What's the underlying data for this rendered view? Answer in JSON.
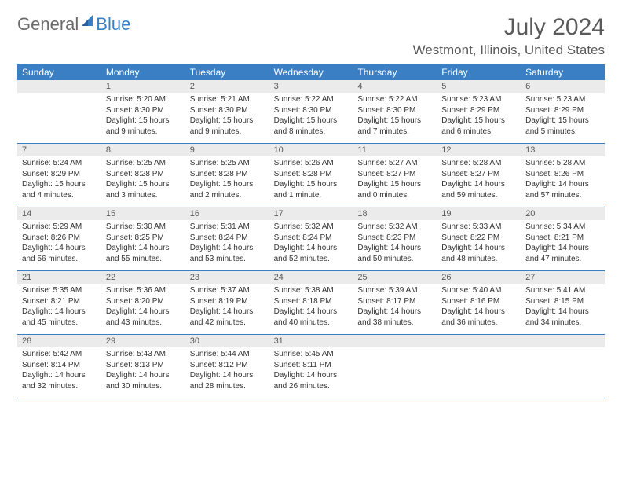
{
  "logo": {
    "text1": "General",
    "text2": "Blue"
  },
  "title": "July 2024",
  "location": "Westmont, Illinois, United States",
  "colors": {
    "header_bg": "#3a7fc4",
    "daynum_bg": "#ebebeb",
    "text_gray": "#5a5a5a",
    "body_text": "#333333"
  },
  "day_names": [
    "Sunday",
    "Monday",
    "Tuesday",
    "Wednesday",
    "Thursday",
    "Friday",
    "Saturday"
  ],
  "weeks": [
    [
      {
        "num": "",
        "sunrise": "",
        "sunset": "",
        "daylight1": "",
        "daylight2": ""
      },
      {
        "num": "1",
        "sunrise": "Sunrise: 5:20 AM",
        "sunset": "Sunset: 8:30 PM",
        "daylight1": "Daylight: 15 hours",
        "daylight2": "and 9 minutes."
      },
      {
        "num": "2",
        "sunrise": "Sunrise: 5:21 AM",
        "sunset": "Sunset: 8:30 PM",
        "daylight1": "Daylight: 15 hours",
        "daylight2": "and 9 minutes."
      },
      {
        "num": "3",
        "sunrise": "Sunrise: 5:22 AM",
        "sunset": "Sunset: 8:30 PM",
        "daylight1": "Daylight: 15 hours",
        "daylight2": "and 8 minutes."
      },
      {
        "num": "4",
        "sunrise": "Sunrise: 5:22 AM",
        "sunset": "Sunset: 8:30 PM",
        "daylight1": "Daylight: 15 hours",
        "daylight2": "and 7 minutes."
      },
      {
        "num": "5",
        "sunrise": "Sunrise: 5:23 AM",
        "sunset": "Sunset: 8:29 PM",
        "daylight1": "Daylight: 15 hours",
        "daylight2": "and 6 minutes."
      },
      {
        "num": "6",
        "sunrise": "Sunrise: 5:23 AM",
        "sunset": "Sunset: 8:29 PM",
        "daylight1": "Daylight: 15 hours",
        "daylight2": "and 5 minutes."
      }
    ],
    [
      {
        "num": "7",
        "sunrise": "Sunrise: 5:24 AM",
        "sunset": "Sunset: 8:29 PM",
        "daylight1": "Daylight: 15 hours",
        "daylight2": "and 4 minutes."
      },
      {
        "num": "8",
        "sunrise": "Sunrise: 5:25 AM",
        "sunset": "Sunset: 8:28 PM",
        "daylight1": "Daylight: 15 hours",
        "daylight2": "and 3 minutes."
      },
      {
        "num": "9",
        "sunrise": "Sunrise: 5:25 AM",
        "sunset": "Sunset: 8:28 PM",
        "daylight1": "Daylight: 15 hours",
        "daylight2": "and 2 minutes."
      },
      {
        "num": "10",
        "sunrise": "Sunrise: 5:26 AM",
        "sunset": "Sunset: 8:28 PM",
        "daylight1": "Daylight: 15 hours",
        "daylight2": "and 1 minute."
      },
      {
        "num": "11",
        "sunrise": "Sunrise: 5:27 AM",
        "sunset": "Sunset: 8:27 PM",
        "daylight1": "Daylight: 15 hours",
        "daylight2": "and 0 minutes."
      },
      {
        "num": "12",
        "sunrise": "Sunrise: 5:28 AM",
        "sunset": "Sunset: 8:27 PM",
        "daylight1": "Daylight: 14 hours",
        "daylight2": "and 59 minutes."
      },
      {
        "num": "13",
        "sunrise": "Sunrise: 5:28 AM",
        "sunset": "Sunset: 8:26 PM",
        "daylight1": "Daylight: 14 hours",
        "daylight2": "and 57 minutes."
      }
    ],
    [
      {
        "num": "14",
        "sunrise": "Sunrise: 5:29 AM",
        "sunset": "Sunset: 8:26 PM",
        "daylight1": "Daylight: 14 hours",
        "daylight2": "and 56 minutes."
      },
      {
        "num": "15",
        "sunrise": "Sunrise: 5:30 AM",
        "sunset": "Sunset: 8:25 PM",
        "daylight1": "Daylight: 14 hours",
        "daylight2": "and 55 minutes."
      },
      {
        "num": "16",
        "sunrise": "Sunrise: 5:31 AM",
        "sunset": "Sunset: 8:24 PM",
        "daylight1": "Daylight: 14 hours",
        "daylight2": "and 53 minutes."
      },
      {
        "num": "17",
        "sunrise": "Sunrise: 5:32 AM",
        "sunset": "Sunset: 8:24 PM",
        "daylight1": "Daylight: 14 hours",
        "daylight2": "and 52 minutes."
      },
      {
        "num": "18",
        "sunrise": "Sunrise: 5:32 AM",
        "sunset": "Sunset: 8:23 PM",
        "daylight1": "Daylight: 14 hours",
        "daylight2": "and 50 minutes."
      },
      {
        "num": "19",
        "sunrise": "Sunrise: 5:33 AM",
        "sunset": "Sunset: 8:22 PM",
        "daylight1": "Daylight: 14 hours",
        "daylight2": "and 48 minutes."
      },
      {
        "num": "20",
        "sunrise": "Sunrise: 5:34 AM",
        "sunset": "Sunset: 8:21 PM",
        "daylight1": "Daylight: 14 hours",
        "daylight2": "and 47 minutes."
      }
    ],
    [
      {
        "num": "21",
        "sunrise": "Sunrise: 5:35 AM",
        "sunset": "Sunset: 8:21 PM",
        "daylight1": "Daylight: 14 hours",
        "daylight2": "and 45 minutes."
      },
      {
        "num": "22",
        "sunrise": "Sunrise: 5:36 AM",
        "sunset": "Sunset: 8:20 PM",
        "daylight1": "Daylight: 14 hours",
        "daylight2": "and 43 minutes."
      },
      {
        "num": "23",
        "sunrise": "Sunrise: 5:37 AM",
        "sunset": "Sunset: 8:19 PM",
        "daylight1": "Daylight: 14 hours",
        "daylight2": "and 42 minutes."
      },
      {
        "num": "24",
        "sunrise": "Sunrise: 5:38 AM",
        "sunset": "Sunset: 8:18 PM",
        "daylight1": "Daylight: 14 hours",
        "daylight2": "and 40 minutes."
      },
      {
        "num": "25",
        "sunrise": "Sunrise: 5:39 AM",
        "sunset": "Sunset: 8:17 PM",
        "daylight1": "Daylight: 14 hours",
        "daylight2": "and 38 minutes."
      },
      {
        "num": "26",
        "sunrise": "Sunrise: 5:40 AM",
        "sunset": "Sunset: 8:16 PM",
        "daylight1": "Daylight: 14 hours",
        "daylight2": "and 36 minutes."
      },
      {
        "num": "27",
        "sunrise": "Sunrise: 5:41 AM",
        "sunset": "Sunset: 8:15 PM",
        "daylight1": "Daylight: 14 hours",
        "daylight2": "and 34 minutes."
      }
    ],
    [
      {
        "num": "28",
        "sunrise": "Sunrise: 5:42 AM",
        "sunset": "Sunset: 8:14 PM",
        "daylight1": "Daylight: 14 hours",
        "daylight2": "and 32 minutes."
      },
      {
        "num": "29",
        "sunrise": "Sunrise: 5:43 AM",
        "sunset": "Sunset: 8:13 PM",
        "daylight1": "Daylight: 14 hours",
        "daylight2": "and 30 minutes."
      },
      {
        "num": "30",
        "sunrise": "Sunrise: 5:44 AM",
        "sunset": "Sunset: 8:12 PM",
        "daylight1": "Daylight: 14 hours",
        "daylight2": "and 28 minutes."
      },
      {
        "num": "31",
        "sunrise": "Sunrise: 5:45 AM",
        "sunset": "Sunset: 8:11 PM",
        "daylight1": "Daylight: 14 hours",
        "daylight2": "and 26 minutes."
      },
      {
        "num": "",
        "sunrise": "",
        "sunset": "",
        "daylight1": "",
        "daylight2": ""
      },
      {
        "num": "",
        "sunrise": "",
        "sunset": "",
        "daylight1": "",
        "daylight2": ""
      },
      {
        "num": "",
        "sunrise": "",
        "sunset": "",
        "daylight1": "",
        "daylight2": ""
      }
    ]
  ]
}
